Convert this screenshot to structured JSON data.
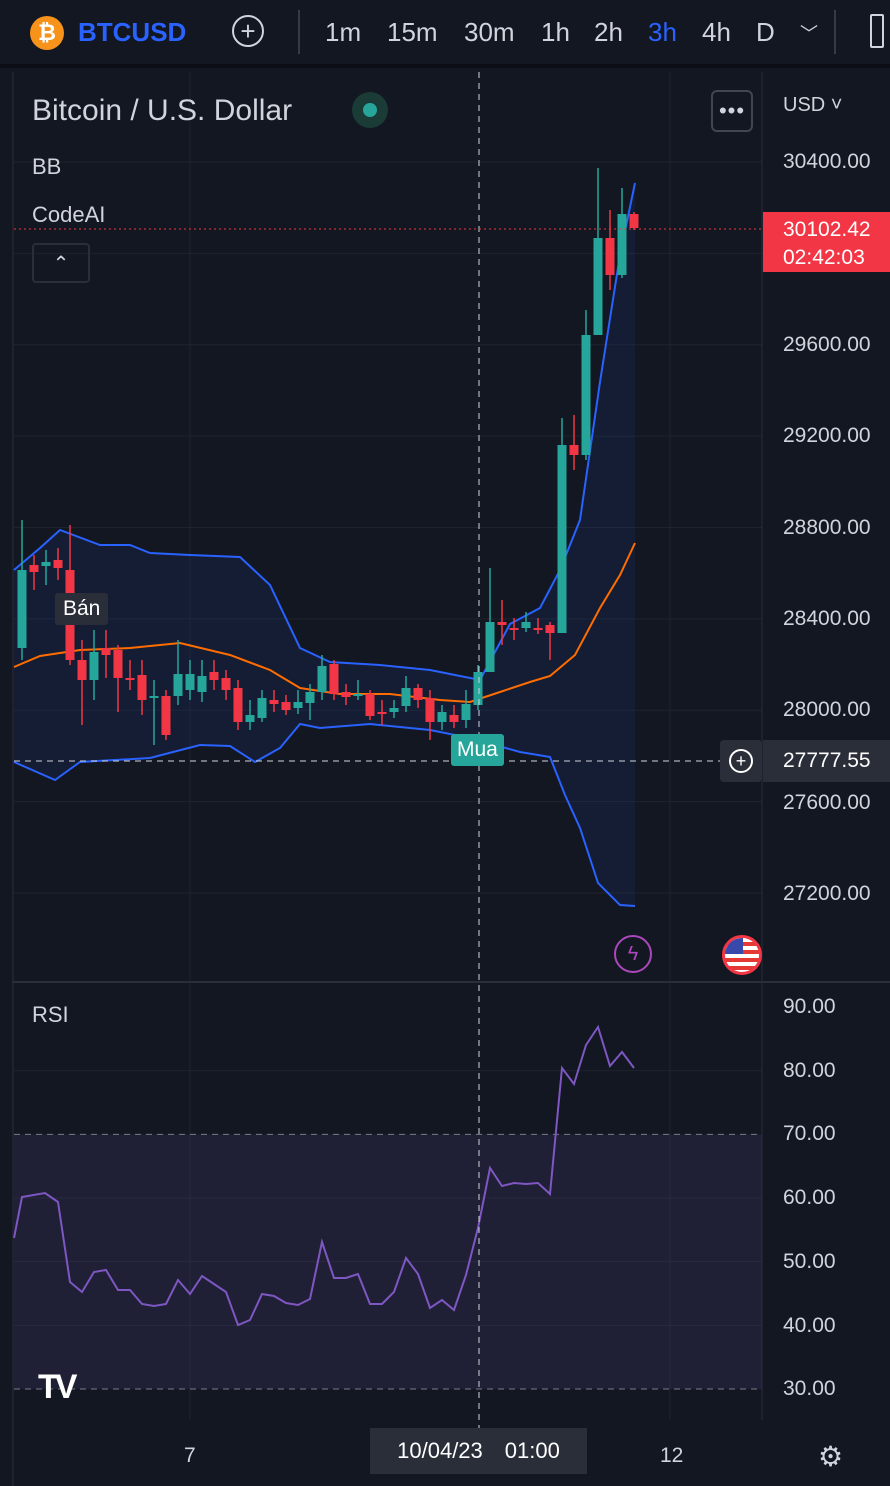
{
  "topbar": {
    "logo_glyph": "₿",
    "symbol": "BTCUSD",
    "add_glyph": "+",
    "timeframes": [
      "1m",
      "15m",
      "30m",
      "1h",
      "2h",
      "3h",
      "4h",
      "D"
    ],
    "active_timeframe": "3h"
  },
  "chart": {
    "title": "Bitcoin / U.S. Dollar",
    "currency": "USD",
    "indicators": [
      "BB",
      "CodeAI"
    ],
    "more_glyph": "•••",
    "collapse_glyph": "⌃",
    "last_price": "30102.42",
    "countdown": "02:42:03",
    "crosshair_price": "27777.55",
    "sell_label": "Bán",
    "buy_label": "Mua",
    "price_axis": [
      "30400.00",
      "29600.00",
      "29200.00",
      "28800.00",
      "28400.00",
      "28000.00",
      "27600.00",
      "27200.00"
    ],
    "colors": {
      "up": "#26a69a",
      "down": "#f23645",
      "accent": "#2962ff",
      "bb_band": "#2962ff",
      "bb_basis": "#ff6d00",
      "rsi": "#7e57c2"
    }
  },
  "rsi": {
    "label": "RSI",
    "axis": [
      "90.00",
      "80.00",
      "70.00",
      "60.00",
      "50.00",
      "40.00",
      "30.00"
    ]
  },
  "footer": {
    "x_labels": [
      "7",
      "12"
    ],
    "crosshair_date": "10/04/23",
    "crosshair_time": "01:00",
    "logo_text": "TV"
  }
}
